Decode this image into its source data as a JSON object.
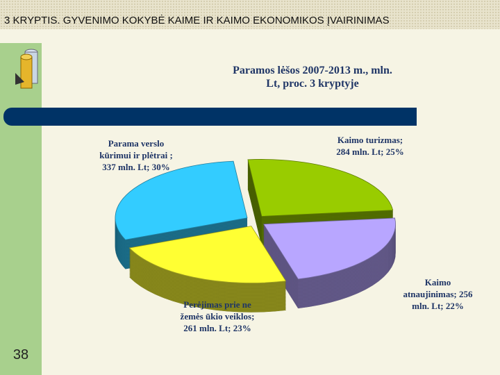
{
  "header": {
    "title": "3 KRYPTIS. GYVENIMO KOKYBĖ KAIME IR KAIMO EKONOMIKOS ĮVAIRINIMAS",
    "page_number": "38"
  },
  "chart_data": {
    "type": "pie",
    "title": "Paramos lėšos 2007-2013 m., mln. Lt, proc. 3 kryptyje",
    "categories": [
      "Kaimo turizmas; 284 mln. Lt; 25%",
      "Kaimo atnaujinimas; 256 mln. Lt; 22%",
      "Perėjimas prie ne žemės ūkio veiklos; 261 mln. Lt; 23%",
      "Parama verslo kūrimui ir plėtrai ; 337 mln. Lt; 30%"
    ],
    "values": [
      284,
      256,
      261,
      337
    ],
    "colors": [
      "#99cc00",
      "#b8a6ff",
      "#ffff33",
      "#33ccff"
    ]
  }
}
